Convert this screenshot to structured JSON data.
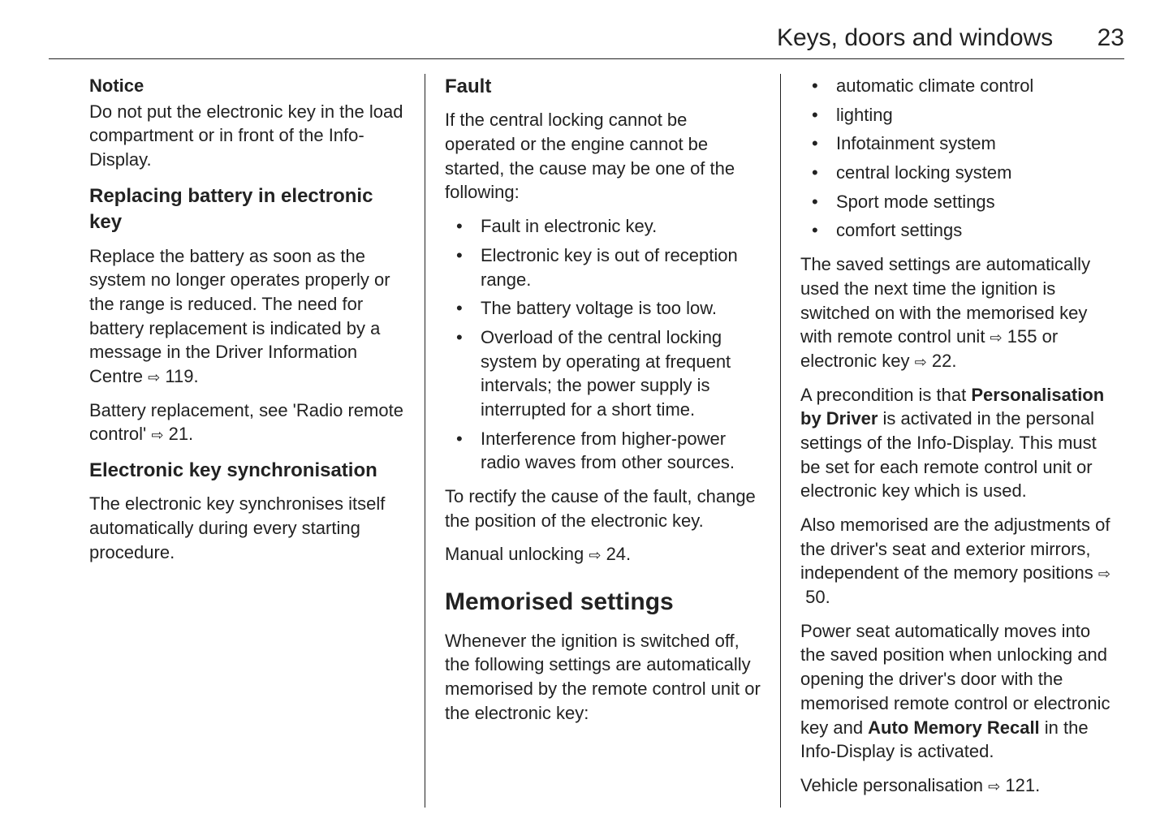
{
  "header": {
    "chapter": "Keys, doors and windows",
    "page_number": "23"
  },
  "col1": {
    "notice_label": "Notice",
    "notice_text": "Do not put the electronic key in the load compartment or in front of the Info-Display.",
    "h_replace": "Replacing battery in electronic key",
    "replace_p1_a": "Replace the battery as soon as the system no longer operates properly or the range is reduced. The need for battery replacement is indicated by a message in the Driver Information Centre ",
    "replace_p1_ref": "119.",
    "replace_p2_a": "Battery replacement, see 'Radio remote control' ",
    "replace_p2_ref": "21.",
    "h_sync": "Electronic key synchronisation",
    "sync_p": "The electronic key synchronises itself automatically during every starting procedure."
  },
  "col2": {
    "h_fault": "Fault",
    "fault_intro": "If the central locking cannot be operated or the engine cannot be started, the cause may be one of the following:",
    "fault_items": [
      "Fault in electronic key.",
      "Electronic key is out of reception range.",
      "The battery voltage is too low.",
      "Overload of the central locking system by operating at frequent intervals; the power supply is interrupted for a short time.",
      "Interference from higher-power radio waves from other sources."
    ],
    "fault_rectify": "To rectify the cause of the fault, change the position of the electronic key.",
    "fault_manual_a": "Manual unlocking ",
    "fault_manual_ref": "24.",
    "h_mem": "Memorised settings",
    "mem_intro": "Whenever the ignition is switched off, the following settings are automatically memorised by the remote control unit or the electronic key:"
  },
  "col3": {
    "mem_items": [
      "automatic climate control",
      "lighting",
      "Infotainment system",
      "central locking system",
      "Sport mode settings",
      "comfort settings"
    ],
    "p1_a": "The saved settings are automatically used the next time the ignition is switched on with the memorised key with remote control unit ",
    "p1_ref1": "155",
    "p1_b": " or electronic key ",
    "p1_ref2": "22.",
    "p2_a": "A precondition is that ",
    "p2_bold": "Personalisation by Driver",
    "p2_b": " is activated in the personal settings of the Info-Display. This must be set for each remote control unit or electronic key which is used.",
    "p3_a": "Also memorised are the adjustments of the driver's seat and exterior mirrors, independent of the memory positions ",
    "p3_ref": "50.",
    "p4_a": "Power seat automatically moves into the saved position when unlocking and opening the driver's door with the memorised remote control or electronic key and ",
    "p4_bold": "Auto Memory Recall",
    "p4_b": " in the Info-Display is activated.",
    "p5_a": "Vehicle personalisation ",
    "p5_ref": "121."
  },
  "icons": {
    "ref_glyph": "⇨"
  }
}
